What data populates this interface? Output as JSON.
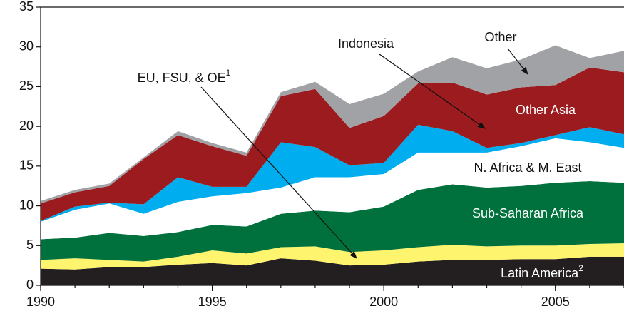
{
  "chart_data": {
    "type": "stacked-area",
    "x": [
      1990,
      1991,
      1992,
      1993,
      1994,
      1995,
      1996,
      1997,
      1998,
      1999,
      2000,
      2001,
      2002,
      2003,
      2004,
      2005,
      2006,
      2007
    ],
    "xlim": [
      1990,
      2007
    ],
    "xticks": [
      1990,
      1995,
      2000,
      2005
    ],
    "ylim": [
      0,
      35
    ],
    "yticks": [
      0,
      5,
      10,
      15,
      20,
      25,
      30,
      35
    ],
    "grid": false,
    "series": [
      {
        "name": "Latin America",
        "note": "2",
        "color": "#231f20",
        "values": [
          2.1,
          2.0,
          2.3,
          2.3,
          2.6,
          2.8,
          2.5,
          3.4,
          3.1,
          2.5,
          2.6,
          3.0,
          3.2,
          3.2,
          3.3,
          3.3,
          3.6,
          3.6
        ]
      },
      {
        "name": "EU, FSU, & OE",
        "note": "1",
        "color": "#fff46e",
        "values": [
          1.1,
          1.4,
          0.9,
          0.7,
          1.0,
          1.6,
          1.5,
          1.4,
          1.8,
          1.7,
          1.8,
          1.8,
          1.9,
          1.7,
          1.7,
          1.7,
          1.6,
          1.7
        ]
      },
      {
        "name": "Sub-Saharan Africa",
        "color": "#00703c",
        "values": [
          2.6,
          2.6,
          3.4,
          3.2,
          3.1,
          3.2,
          3.4,
          4.2,
          4.5,
          5.0,
          5.5,
          7.2,
          7.6,
          7.4,
          7.5,
          7.9,
          7.9,
          7.6
        ]
      },
      {
        "name": "N. Africa & M. East",
        "color": "#ffffff",
        "values": [
          2.2,
          3.5,
          3.7,
          2.8,
          3.8,
          3.6,
          4.2,
          3.3,
          4.2,
          4.4,
          4.1,
          4.7,
          4.0,
          4.4,
          5.0,
          5.6,
          4.9,
          4.4
        ]
      },
      {
        "name": "Indonesia",
        "color": "#00aeef",
        "values": [
          0.1,
          0.4,
          0.1,
          1.2,
          3.1,
          1.2,
          0.8,
          5.7,
          3.8,
          1.5,
          1.4,
          3.5,
          2.7,
          0.6,
          0.4,
          0.4,
          1.9,
          1.7
        ]
      },
      {
        "name": "Other Asia",
        "color": "#9b1b1e",
        "values": [
          2.2,
          1.8,
          2.1,
          5.7,
          5.3,
          5.1,
          3.9,
          5.8,
          7.3,
          4.7,
          5.9,
          5.2,
          6.1,
          6.7,
          7.0,
          6.3,
          7.5,
          7.8
        ]
      },
      {
        "name": "Other",
        "color": "#a0a2a5",
        "values": [
          0.3,
          0.3,
          0.3,
          0.2,
          0.5,
          0.4,
          0.4,
          0.5,
          0.9,
          3.0,
          2.8,
          1.5,
          3.2,
          3.3,
          3.5,
          5.0,
          1.2,
          2.7
        ]
      }
    ]
  }
}
